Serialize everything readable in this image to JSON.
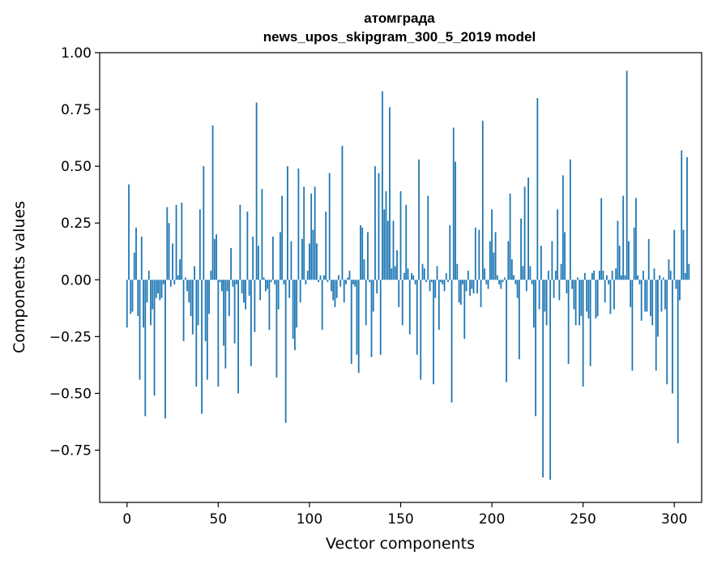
{
  "chart_data": {
    "type": "bar",
    "title_line1": "атомграда",
    "title_line2": "news_upos_skipgram_300_5_2019 model",
    "xlabel": "Vector components",
    "ylabel": "Components values",
    "xlim": [
      -15,
      315
    ],
    "ylim": [
      -0.98,
      1.0
    ],
    "xticks": [
      0,
      50,
      100,
      150,
      200,
      250,
      300
    ],
    "yticks": [
      1.0,
      0.75,
      0.5,
      0.25,
      0.0,
      -0.25,
      -0.5,
      -0.75
    ],
    "ytick_labels": [
      "1.00",
      "0.75",
      "0.50",
      "0.25",
      "0.00",
      "−0.25",
      "−0.50",
      "−0.75"
    ],
    "bar_color": "#1f77b4",
    "values": [
      -0.21,
      0.42,
      -0.15,
      -0.14,
      0.12,
      0.23,
      -0.16,
      -0.44,
      0.19,
      -0.21,
      -0.6,
      -0.1,
      0.04,
      -0.2,
      -0.13,
      -0.51,
      -0.08,
      -0.06,
      -0.09,
      -0.08,
      -0.02,
      -0.61,
      0.32,
      0.25,
      -0.03,
      0.16,
      -0.02,
      0.33,
      0.02,
      0.09,
      0.34,
      -0.27,
      0.01,
      -0.05,
      -0.1,
      -0.16,
      -0.24,
      0.06,
      -0.47,
      -0.2,
      0.31,
      -0.59,
      0.5,
      -0.27,
      -0.44,
      -0.15,
      0.04,
      0.68,
      0.18,
      0.2,
      -0.47,
      -0.01,
      -0.05,
      -0.29,
      -0.39,
      -0.05,
      -0.16,
      0.14,
      -0.03,
      -0.28,
      -0.02,
      -0.5,
      0.33,
      -0.06,
      -0.1,
      -0.13,
      0.3,
      -0.07,
      -0.38,
      0.19,
      -0.23,
      0.78,
      0.15,
      -0.09,
      0.4,
      0.01,
      -0.05,
      -0.04,
      -0.22,
      -0.01,
      0.19,
      -0.02,
      -0.43,
      -0.13,
      0.21,
      0.37,
      -0.02,
      -0.63,
      0.5,
      -0.08,
      0.17,
      -0.26,
      -0.31,
      -0.21,
      0.49,
      -0.1,
      0.18,
      0.41,
      -0.02,
      0.04,
      0.16,
      0.38,
      0.22,
      0.41,
      0.16,
      -0.01,
      0.02,
      -0.22,
      0.02,
      0.3,
      -0.01,
      0.47,
      -0.05,
      -0.09,
      -0.12,
      -0.08,
      0.02,
      -0.03,
      0.59,
      -0.1,
      -0.02,
      0.01,
      0.04,
      -0.37,
      -0.02,
      -0.03,
      -0.33,
      -0.41,
      0.24,
      0.23,
      0.09,
      -0.2,
      0.21,
      -0.01,
      -0.34,
      -0.14,
      0.5,
      -0.06,
      0.47,
      -0.33,
      0.83,
      0.31,
      0.39,
      0.26,
      0.76,
      0.05,
      0.26,
      0.06,
      0.13,
      -0.12,
      0.39,
      -0.2,
      0.03,
      0.33,
      0.05,
      -0.24,
      0.03,
      0.02,
      -0.02,
      -0.33,
      0.53,
      -0.44,
      0.07,
      0.05,
      -0.01,
      0.37,
      -0.05,
      -0.01,
      -0.46,
      -0.08,
      0.06,
      -0.22,
      -0.01,
      -0.02,
      -0.05,
      0.03,
      -0.01,
      0.24,
      -0.54,
      0.67,
      0.52,
      0.07,
      -0.1,
      -0.11,
      -0.02,
      -0.26,
      -0.05,
      0.04,
      -0.07,
      -0.04,
      -0.06,
      0.23,
      -0.06,
      0.22,
      -0.12,
      0.7,
      0.05,
      -0.02,
      -0.04,
      0.17,
      0.31,
      0.12,
      0.21,
      0.02,
      -0.02,
      -0.04,
      -0.01,
      0.01,
      -0.45,
      0.17,
      0.38,
      0.09,
      0.02,
      -0.02,
      -0.08,
      -0.35,
      0.27,
      0.06,
      0.41,
      -0.05,
      0.45,
      0.06,
      -0.02,
      -0.21,
      -0.6,
      0.8,
      -0.13,
      0.15,
      -0.87,
      -0.14,
      -0.2,
      0.04,
      -0.88,
      0.17,
      -0.08,
      0.04,
      0.31,
      -0.09,
      0.07,
      0.46,
      0.21,
      -0.06,
      -0.37,
      0.53,
      -0.04,
      -0.13,
      -0.2,
      0.01,
      -0.2,
      -0.16,
      -0.47,
      0.03,
      -0.14,
      -0.17,
      -0.38,
      0.03,
      0.04,
      -0.17,
      -0.16,
      0.04,
      0.36,
      0.04,
      -0.1,
      0.02,
      -0.02,
      -0.15,
      0.04,
      -0.13,
      0.05,
      0.26,
      0.15,
      0.02,
      0.37,
      0.02,
      0.92,
      0.17,
      -0.12,
      -0.4,
      0.23,
      0.36,
      0.02,
      -0.02,
      -0.18,
      0.04,
      -0.14,
      -0.14,
      0.18,
      -0.16,
      -0.2,
      0.05,
      -0.4,
      -0.25,
      0.02,
      -0.14,
      0.01,
      -0.13,
      -0.46,
      0.09,
      0.04,
      -0.5,
      0.22,
      -0.04,
      -0.72,
      -0.09,
      0.57,
      0.22,
      0.03,
      0.54,
      0.07
    ]
  }
}
